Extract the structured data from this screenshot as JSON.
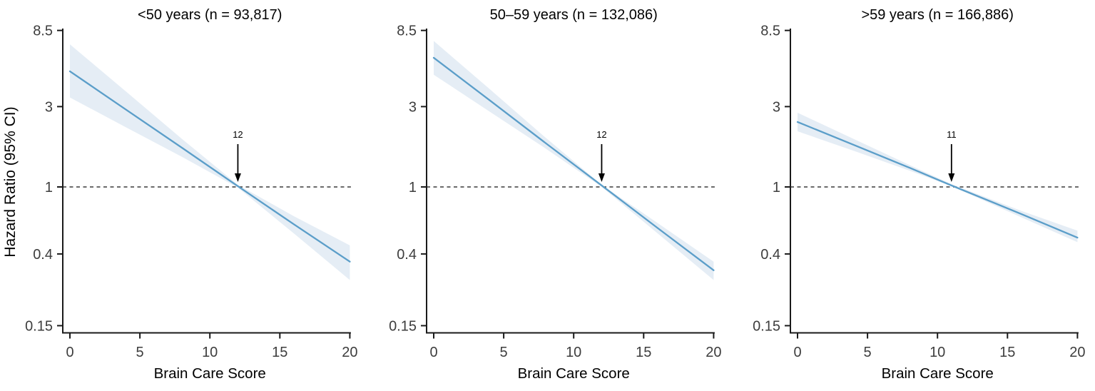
{
  "figure": {
    "ylabel": "Hazard Ratio (95% CI)",
    "xlabel": "Brain Care Score",
    "reference_hr": 1,
    "colors": {
      "line": "#5b9ec9",
      "band": "#e5edf5",
      "axis": "#1a1a1a",
      "tick_label": "#3d3d3d",
      "title": "#000000",
      "reference_line": "#3a3a3a",
      "arrow": "#000000",
      "background": "#ffffff"
    }
  },
  "chart_data": [
    {
      "type": "line",
      "title": "<50 years (n = 93,817)",
      "xlabel": "Brain Care Score",
      "ylabel": "Hazard Ratio (95% CI)",
      "x_scale": "linear",
      "y_scale": "log",
      "xlim": [
        0,
        20
      ],
      "ylim": [
        0.15,
        8.5
      ],
      "grid": false,
      "legend": "none",
      "xtick_values": [
        0,
        5,
        10,
        15,
        20
      ],
      "xtick_labels": [
        "0",
        "5",
        "10",
        "15",
        "20"
      ],
      "ytick_values": [
        8.5,
        3,
        1,
        0.4,
        0.15
      ],
      "ytick_labels": [
        "8.5",
        "3",
        "1",
        "0.4",
        "0.15"
      ],
      "reference_hr": 1,
      "annotation": {
        "label": "12",
        "x": 12,
        "meaning": "Brain Care Score where HR crosses 1"
      },
      "x": [
        0,
        4,
        8,
        12,
        16,
        20
      ],
      "hr": [
        4.86,
        2.88,
        1.71,
        1.01,
        0.6,
        0.36
      ],
      "lower": [
        3.4,
        2.26,
        1.51,
        0.99,
        0.53,
        0.28
      ],
      "upper": [
        7.03,
        3.69,
        1.93,
        1.03,
        0.67,
        0.45
      ]
    },
    {
      "type": "line",
      "title": "50–59 years (n = 132,086)",
      "xlabel": "Brain Care Score",
      "ylabel": "Hazard Ratio (95% CI)",
      "x_scale": "linear",
      "y_scale": "log",
      "xlim": [
        0,
        20
      ],
      "ylim": [
        0.15,
        8.5
      ],
      "grid": false,
      "legend": "none",
      "xtick_values": [
        0,
        5,
        10,
        15,
        20
      ],
      "xtick_labels": [
        "0",
        "5",
        "10",
        "15",
        "20"
      ],
      "ytick_values": [
        8.5,
        3,
        1,
        0.4,
        0.15
      ],
      "ytick_labels": [
        "8.5",
        "3",
        "1",
        "0.4",
        "0.15"
      ],
      "reference_hr": 1,
      "annotation": {
        "label": "12",
        "x": 12,
        "meaning": "Brain Care Score where HR crosses 1"
      },
      "x": [
        0,
        4,
        8,
        12,
        16,
        20
      ],
      "hr": [
        5.85,
        3.27,
        1.82,
        1.02,
        0.57,
        0.32
      ],
      "lower": [
        4.64,
        2.8,
        1.69,
        1.0,
        0.53,
        0.28
      ],
      "upper": [
        7.36,
        3.81,
        1.96,
        1.03,
        0.61,
        0.36
      ]
    },
    {
      "type": "line",
      "title": ">59 years (n = 166,886)",
      "xlabel": "Brain Care Score",
      "ylabel": "Hazard Ratio (95% CI)",
      "x_scale": "linear",
      "y_scale": "log",
      "xlim": [
        0,
        20
      ],
      "ylim": [
        0.15,
        8.5
      ],
      "grid": false,
      "legend": "none",
      "xtick_values": [
        0,
        5,
        10,
        15,
        20
      ],
      "xtick_labels": [
        "0",
        "5",
        "10",
        "15",
        "20"
      ],
      "ytick_values": [
        8.5,
        3,
        1,
        0.4,
        0.15
      ],
      "ytick_labels": [
        "8.5",
        "3",
        "1",
        "0.4",
        "0.15"
      ],
      "reference_hr": 1,
      "annotation": {
        "label": "11",
        "x": 11,
        "meaning": "Brain Care Score where HR crosses 1"
      },
      "x": [
        0,
        4,
        8,
        11,
        16,
        20
      ],
      "hr": [
        2.43,
        1.78,
        1.3,
        1.02,
        0.69,
        0.5
      ],
      "lower": [
        2.14,
        1.64,
        1.25,
        1.01,
        0.66,
        0.47
      ],
      "upper": [
        2.76,
        1.93,
        1.35,
        1.04,
        0.72,
        0.55
      ]
    }
  ]
}
